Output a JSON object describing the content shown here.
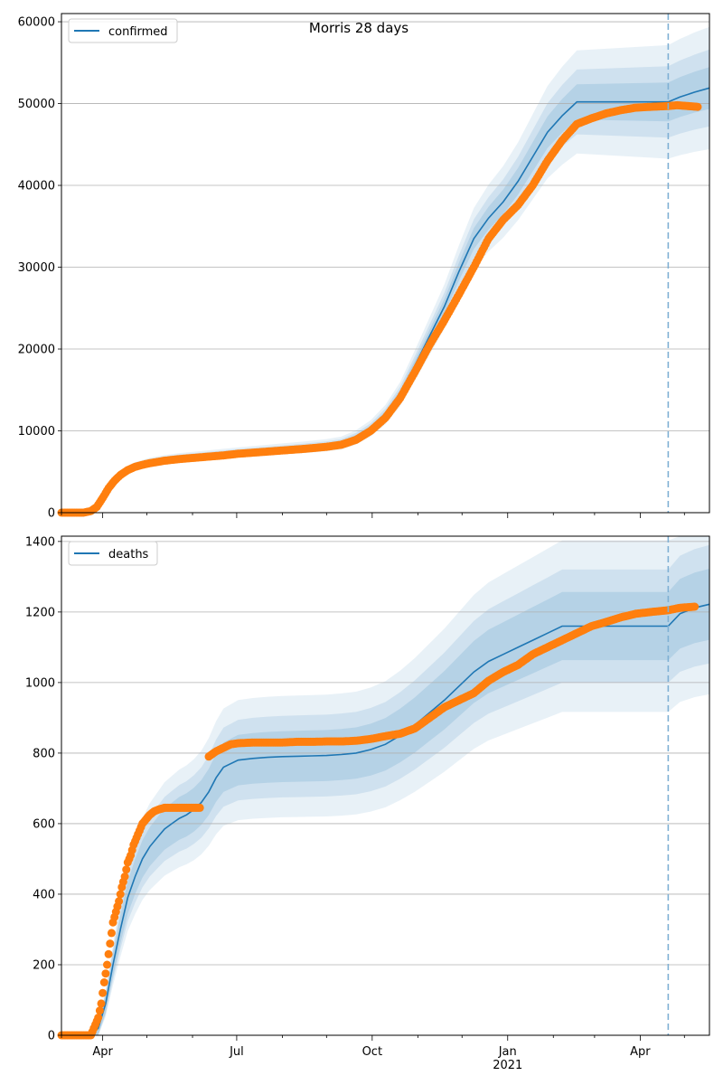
{
  "figure": {
    "title": "Morris 28 days"
  },
  "colors": {
    "line": "#1f77b4",
    "points": "#ff7f0e",
    "band": "#1f77b4",
    "grid": "#b0b0b0",
    "vline": "#7fb0d4"
  },
  "chart_data": [
    {
      "type": "line",
      "title": "Morris 28 days",
      "legend": {
        "label": "confirmed",
        "placement": "top-left"
      },
      "ylim": [
        0,
        61000
      ],
      "yticks": [
        0,
        10000,
        20000,
        30000,
        40000,
        50000,
        60000
      ],
      "grid": "horizontal",
      "xlim_days": [
        0,
        440
      ],
      "xtick_labels": [],
      "forecast_start_day": 412,
      "model": {
        "x_days": [
          0,
          15,
          20,
          25,
          30,
          35,
          40,
          45,
          50,
          60,
          70,
          80,
          90,
          100,
          110,
          120,
          135,
          150,
          165,
          180,
          190,
          200,
          210,
          220,
          230,
          240,
          250,
          260,
          270,
          280,
          290,
          300,
          310,
          320,
          330,
          340,
          350,
          360,
          370,
          380,
          390,
          400,
          412,
          420,
          430,
          440
        ],
        "y": [
          0,
          0,
          200,
          1000,
          2500,
          3900,
          4800,
          5400,
          5800,
          6300,
          6600,
          6800,
          6950,
          7100,
          7250,
          7400,
          7600,
          7800,
          8000,
          8250,
          8500,
          9200,
          10300,
          12000,
          14500,
          18000,
          21600,
          25200,
          29500,
          33500,
          36000,
          38000,
          40500,
          43500,
          46500,
          48500,
          50200,
          null,
          null,
          null,
          null,
          null,
          50200,
          50800,
          51400,
          51900
        ],
        "sigma_frac": 0.04
      },
      "observed": {
        "x_days": [
          0,
          15,
          20,
          24,
          28,
          32,
          36,
          40,
          45,
          50,
          55,
          60,
          70,
          80,
          90,
          100,
          110,
          120,
          135,
          150,
          165,
          180,
          190,
          200,
          210,
          220,
          230,
          240,
          250,
          260,
          270,
          280,
          290,
          300,
          310,
          320,
          330,
          340,
          350,
          360,
          370,
          380,
          390,
          400,
          412,
          418,
          425,
          432
        ],
        "y": [
          0,
          0,
          200,
          700,
          1800,
          3000,
          3900,
          4600,
          5200,
          5600,
          5850,
          6050,
          6350,
          6550,
          6700,
          6850,
          7000,
          7200,
          7400,
          7600,
          7800,
          8050,
          8300,
          8900,
          10000,
          11600,
          14000,
          17200,
          20500,
          23500,
          26700,
          30000,
          33500,
          35800,
          37600,
          40000,
          43000,
          45500,
          47500,
          48200,
          48800,
          49200,
          49500,
          49600,
          49700,
          49800,
          49700,
          49600
        ]
      }
    },
    {
      "type": "line",
      "legend": {
        "label": "deaths",
        "placement": "top-left"
      },
      "ylim": [
        0,
        1415
      ],
      "yticks": [
        0,
        200,
        400,
        600,
        800,
        1000,
        1200,
        1400
      ],
      "grid": "horizontal",
      "xlim_days": [
        0,
        440
      ],
      "xtick_labels": [
        "Apr",
        "Jul",
        "Oct",
        "Jan",
        "Apr"
      ],
      "xtick_days": [
        28,
        119,
        211,
        303,
        393
      ],
      "year_label": {
        "text": "2021",
        "day": 303
      },
      "forecast_start_day": 412,
      "model": {
        "x_days": [
          0,
          20,
          25,
          30,
          35,
          40,
          45,
          50,
          55,
          60,
          65,
          70,
          75,
          80,
          85,
          90,
          95,
          100,
          105,
          110,
          120,
          130,
          140,
          150,
          160,
          170,
          180,
          190,
          200,
          210,
          220,
          230,
          240,
          250,
          260,
          270,
          280,
          290,
          300,
          310,
          320,
          330,
          340,
          350,
          360,
          370,
          380,
          390,
          400,
          412
        ],
        "y": [
          0,
          0,
          20,
          90,
          200,
          300,
          390,
          450,
          500,
          535,
          560,
          585,
          600,
          615,
          625,
          640,
          660,
          690,
          730,
          760,
          780,
          785,
          788,
          790,
          791,
          792,
          793,
          796,
          800,
          810,
          825,
          850,
          880,
          915,
          950,
          990,
          1030,
          1060,
          1080,
          1100,
          1120,
          1140,
          1160,
          null,
          null,
          null,
          null,
          null,
          null,
          1160
        ],
        "forecast_x_days": [
          412,
          420,
          430,
          440
        ],
        "forecast_y": [
          1160,
          1195,
          1212,
          1222
        ]
      },
      "observed": {
        "x_days": [
          0,
          20,
          22,
          25,
          27,
          29,
          31,
          33,
          35,
          37,
          39,
          41,
          43,
          45,
          47,
          49,
          51,
          53,
          55,
          57,
          60,
          63,
          66,
          70,
          74,
          78,
          82,
          86,
          90,
          94,
          100,
          105,
          110,
          115,
          120,
          130,
          140,
          150,
          160,
          170,
          180,
          190,
          200,
          210,
          220,
          230,
          240,
          250,
          260,
          270,
          280,
          290,
          300,
          310,
          320,
          330,
          340,
          350,
          360,
          370,
          380,
          390,
          400,
          412,
          420,
          430
        ],
        "y": [
          0,
          0,
          20,
          50,
          90,
          150,
          200,
          260,
          320,
          350,
          380,
          420,
          450,
          490,
          510,
          540,
          560,
          580,
          600,
          610,
          625,
          635,
          640,
          645,
          645,
          645,
          645,
          645,
          645,
          645,
          790,
          805,
          815,
          825,
          828,
          830,
          830,
          830,
          832,
          832,
          833,
          833,
          835,
          840,
          848,
          855,
          870,
          900,
          930,
          950,
          970,
          1005,
          1030,
          1050,
          1080,
          1100,
          1120,
          1140,
          1160,
          1172,
          1185,
          1195,
          1200,
          1205,
          1212,
          1215
        ]
      }
    }
  ]
}
